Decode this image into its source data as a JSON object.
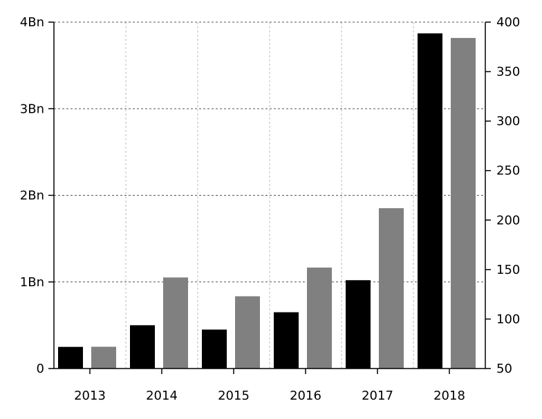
{
  "chart_data": {
    "type": "bar",
    "categories": [
      "2013",
      "2014",
      "2015",
      "2016",
      "2017",
      "2018"
    ],
    "series": [
      {
        "axis": "left",
        "color": "#000000",
        "values": [
          0.25,
          0.5,
          0.45,
          0.65,
          1.02,
          3.87
        ]
      },
      {
        "axis": "right",
        "color": "#808080",
        "values": [
          72,
          142,
          123,
          152,
          212,
          384
        ]
      }
    ],
    "left_axis": {
      "ylim": [
        0,
        4
      ],
      "ticks": [
        0,
        1,
        2,
        3,
        4
      ],
      "tick_labels": [
        "0",
        "1Bn",
        "2Bn",
        "3Bn",
        "4Bn"
      ]
    },
    "right_axis": {
      "ylim": [
        50,
        400
      ],
      "ticks": [
        50,
        100,
        150,
        200,
        250,
        300,
        350,
        400
      ],
      "tick_labels": [
        "50",
        "100",
        "150",
        "200",
        "250",
        "300",
        "350",
        "400"
      ]
    },
    "title": "",
    "xlabel": "",
    "ylabel": "",
    "grid": true,
    "legend": "none"
  }
}
